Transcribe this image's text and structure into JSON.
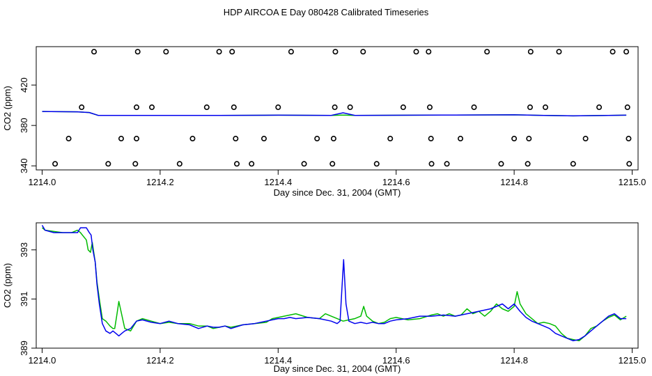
{
  "title": "HDP AIRCOA E  Day 080428  Calibrated Timeseries",
  "colors": {
    "blue": "#0000ee",
    "green": "#00bb00",
    "black": "#000000"
  },
  "chart_data": [
    {
      "type": "line",
      "xlabel": "Day since Dec. 31, 2004 (GMT)",
      "ylabel": "CO2 (ppm)",
      "xlim": [
        1213.99,
        1215.01
      ],
      "ylim": [
        336,
        458
      ],
      "xticks": [
        1214.0,
        1214.2,
        1214.4,
        1214.6,
        1214.8,
        1215.0
      ],
      "xtick_labels": [
        "1214.0",
        "1214.2",
        "1214.4",
        "1214.6",
        "1214.8",
        "1215.0"
      ],
      "yticks": [
        340,
        380,
        420
      ],
      "ytick_labels": [
        "340",
        "380",
        "420"
      ],
      "series": [
        {
          "color": "#00bb00",
          "x": [
            1214.0,
            1214.06,
            1214.08,
            1214.095,
            1214.2,
            1214.3,
            1214.4,
            1214.49,
            1214.51,
            1214.53,
            1214.6,
            1214.7,
            1214.8,
            1214.85,
            1214.9,
            1214.95,
            1214.99
          ],
          "y": [
            393.8,
            393.5,
            392.8,
            390.0,
            390.0,
            390.0,
            390.2,
            390.0,
            390.3,
            390.0,
            390.1,
            390.3,
            390.5,
            390.0,
            389.5,
            389.8,
            390.2
          ]
        },
        {
          "color": "#0000ee",
          "x": [
            1214.0,
            1214.06,
            1214.08,
            1214.095,
            1214.2,
            1214.3,
            1214.4,
            1214.49,
            1214.51,
            1214.53,
            1214.6,
            1214.7,
            1214.8,
            1214.85,
            1214.9,
            1214.95,
            1214.99
          ],
          "y": [
            393.8,
            393.5,
            392.8,
            390.0,
            390.0,
            390.0,
            390.2,
            390.0,
            392.5,
            390.0,
            390.1,
            390.3,
            390.5,
            390.0,
            389.5,
            389.8,
            390.2
          ]
        }
      ],
      "scatter": {
        "marker": "open-circle",
        "x": [
          1214.022,
          1214.045,
          1214.067,
          1214.088,
          1214.112,
          1214.134,
          1214.158,
          1214.16,
          1214.16,
          1214.162,
          1214.186,
          1214.21,
          1214.233,
          1214.255,
          1214.279,
          1214.3,
          1214.322,
          1214.325,
          1214.328,
          1214.33,
          1214.355,
          1214.376,
          1214.4,
          1214.422,
          1214.444,
          1214.466,
          1214.492,
          1214.494,
          1214.496,
          1214.497,
          1214.522,
          1214.544,
          1214.567,
          1214.59,
          1214.612,
          1214.634,
          1214.655,
          1214.657,
          1214.659,
          1214.66,
          1214.686,
          1214.709,
          1214.732,
          1214.754,
          1214.778,
          1214.8,
          1214.823,
          1214.825,
          1214.827,
          1214.828,
          1214.853,
          1214.876,
          1214.9,
          1214.921,
          1214.944,
          1214.967,
          1214.99,
          1214.992,
          1214.994,
          1214.995
        ],
        "y": [
          342,
          367,
          398,
          453,
          342,
          367,
          342,
          367,
          398,
          453,
          398,
          453,
          342,
          367,
          398,
          453,
          453,
          398,
          367,
          342,
          342,
          367,
          398,
          453,
          342,
          367,
          342,
          367,
          398,
          453,
          398,
          453,
          342,
          367,
          398,
          453,
          453,
          398,
          367,
          342,
          342,
          367,
          398,
          453,
          342,
          367,
          342,
          367,
          398,
          453,
          398,
          453,
          342,
          367,
          398,
          453,
          453,
          398,
          367,
          342
        ]
      }
    },
    {
      "type": "line",
      "xlabel": "Day since Dec. 31, 2004 (GMT)",
      "ylabel": "CO2 (ppm)",
      "xlim": [
        1213.99,
        1215.01
      ],
      "ylim": [
        389,
        394.1
      ],
      "xticks": [
        1214.0,
        1214.2,
        1214.4,
        1214.6,
        1214.8,
        1215.0
      ],
      "xtick_labels": [
        "1214.0",
        "1214.2",
        "1214.4",
        "1214.6",
        "1214.8",
        "1215.0"
      ],
      "yticks": [
        389,
        391,
        393
      ],
      "ytick_labels": [
        "389",
        "391",
        "393"
      ],
      "series": [
        {
          "color": "#00bb00",
          "x": [
            1214.0,
            1214.005,
            1214.02,
            1214.035,
            1214.05,
            1214.06,
            1214.065,
            1214.075,
            1214.078,
            1214.082,
            1214.085,
            1214.09,
            1214.093,
            1214.097,
            1214.102,
            1214.108,
            1214.115,
            1214.12,
            1214.123,
            1214.127,
            1214.13,
            1214.14,
            1214.15,
            1214.16,
            1214.17,
            1214.185,
            1214.2,
            1214.215,
            1214.23,
            1214.25,
            1214.265,
            1214.28,
            1214.29,
            1214.3,
            1214.31,
            1214.32,
            1214.34,
            1214.36,
            1214.38,
            1214.39,
            1214.4,
            1214.41,
            1214.42,
            1214.43,
            1214.45,
            1214.47,
            1214.48,
            1214.49,
            1214.5,
            1214.51,
            1214.52,
            1214.53,
            1214.54,
            1214.545,
            1214.55,
            1214.56,
            1214.57,
            1214.58,
            1214.59,
            1214.6,
            1214.62,
            1214.64,
            1214.66,
            1214.67,
            1214.68,
            1214.69,
            1214.7,
            1214.71,
            1214.72,
            1214.73,
            1214.74,
            1214.75,
            1214.76,
            1214.77,
            1214.78,
            1214.79,
            1214.8,
            1214.805,
            1214.81,
            1214.82,
            1214.83,
            1214.84,
            1214.85,
            1214.86,
            1214.87,
            1214.88,
            1214.89,
            1214.9,
            1214.91,
            1214.92,
            1214.93,
            1214.94,
            1214.95,
            1214.96,
            1214.97,
            1214.98,
            1214.99
          ],
          "y": [
            393.9,
            393.8,
            393.75,
            393.7,
            393.7,
            393.8,
            393.7,
            393.4,
            393.0,
            392.9,
            393.3,
            392.5,
            391.7,
            391.0,
            390.2,
            390.1,
            389.9,
            389.8,
            389.8,
            390.4,
            390.9,
            389.8,
            389.7,
            390.1,
            390.2,
            390.1,
            390.0,
            390.05,
            390.0,
            390.0,
            389.9,
            389.9,
            389.8,
            389.85,
            389.9,
            389.85,
            389.95,
            390.0,
            390.05,
            390.2,
            390.25,
            390.3,
            390.35,
            390.4,
            390.25,
            390.2,
            390.4,
            390.3,
            390.2,
            390.1,
            390.15,
            390.2,
            390.3,
            390.7,
            390.3,
            390.1,
            390.0,
            390.05,
            390.2,
            390.25,
            390.15,
            390.2,
            390.35,
            390.4,
            390.3,
            390.4,
            390.3,
            390.35,
            390.6,
            390.4,
            390.5,
            390.3,
            390.5,
            390.8,
            390.6,
            390.5,
            390.7,
            391.3,
            390.8,
            390.4,
            390.2,
            390.0,
            390.05,
            390.0,
            389.9,
            389.6,
            389.4,
            389.35,
            389.3,
            389.5,
            389.8,
            389.9,
            390.1,
            390.25,
            390.35,
            390.15,
            390.3
          ]
        },
        {
          "color": "#0000ee",
          "x": [
            1214.0,
            1214.005,
            1214.02,
            1214.035,
            1214.05,
            1214.06,
            1214.065,
            1214.075,
            1214.08,
            1214.083,
            1214.086,
            1214.09,
            1214.093,
            1214.097,
            1214.102,
            1214.108,
            1214.115,
            1214.12,
            1214.125,
            1214.13,
            1214.135,
            1214.14,
            1214.15,
            1214.16,
            1214.17,
            1214.185,
            1214.2,
            1214.215,
            1214.23,
            1214.25,
            1214.265,
            1214.28,
            1214.29,
            1214.3,
            1214.31,
            1214.32,
            1214.34,
            1214.36,
            1214.38,
            1214.39,
            1214.4,
            1214.41,
            1214.42,
            1214.43,
            1214.45,
            1214.47,
            1214.49,
            1214.5,
            1214.505,
            1214.508,
            1214.511,
            1214.515,
            1214.52,
            1214.53,
            1214.54,
            1214.55,
            1214.56,
            1214.57,
            1214.58,
            1214.59,
            1214.6,
            1214.62,
            1214.64,
            1214.66,
            1214.68,
            1214.7,
            1214.72,
            1214.74,
            1214.76,
            1214.78,
            1214.79,
            1214.8,
            1214.81,
            1214.82,
            1214.83,
            1214.84,
            1214.85,
            1214.86,
            1214.87,
            1214.88,
            1214.89,
            1214.9,
            1214.91,
            1214.92,
            1214.93,
            1214.94,
            1214.95,
            1214.96,
            1214.97,
            1214.98,
            1214.99
          ],
          "y": [
            394.0,
            393.8,
            393.7,
            393.7,
            393.7,
            393.7,
            393.9,
            393.9,
            393.7,
            393.6,
            393.0,
            392.5,
            391.6,
            390.8,
            390.0,
            389.7,
            389.6,
            389.7,
            389.6,
            389.5,
            389.6,
            389.7,
            389.8,
            390.1,
            390.15,
            390.05,
            390.0,
            390.1,
            390.0,
            389.95,
            389.8,
            389.9,
            389.85,
            389.85,
            389.9,
            389.8,
            389.95,
            390.0,
            390.1,
            390.15,
            390.2,
            390.2,
            390.25,
            390.2,
            390.25,
            390.2,
            390.1,
            390.0,
            390.1,
            391.4,
            392.6,
            390.8,
            390.1,
            390.0,
            390.05,
            390.0,
            390.05,
            390.0,
            390.0,
            390.1,
            390.15,
            390.2,
            390.3,
            390.3,
            390.35,
            390.3,
            390.4,
            390.5,
            390.6,
            390.8,
            390.6,
            390.8,
            390.5,
            390.25,
            390.1,
            390.0,
            389.9,
            389.8,
            389.6,
            389.5,
            389.4,
            389.3,
            389.35,
            389.5,
            389.7,
            389.9,
            390.1,
            390.3,
            390.4,
            390.2,
            390.2
          ]
        }
      ]
    }
  ]
}
